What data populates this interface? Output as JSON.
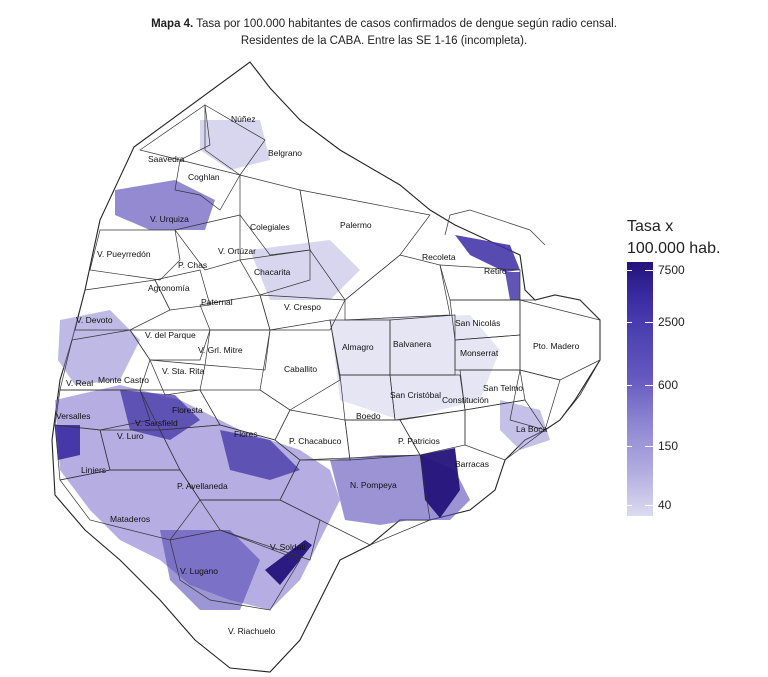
{
  "title": {
    "bold": "Mapa 4.",
    "line1": " Tasa por 100.000 habitantes de casos confirmados de dengue según radio censal.",
    "line2": "Residentes de la CABA. Entre las SE 1-16 (incompleta)."
  },
  "legend": {
    "title_line1": "Tasa x",
    "title_line2": "100.000 hab.",
    "ticks": [
      "7500",
      "2500",
      "600",
      "150",
      "40"
    ],
    "color_high": "#24137a",
    "color_low": "#dcdaf0"
  },
  "neighborhoods": {
    "nunez": "Núñez",
    "saavedra": "Saavedra",
    "belgrano": "Belgrano",
    "coghlan": "Coghlan",
    "v_urquiza": "V. Urquiza",
    "colegiales": "Colegiales",
    "palermo": "Palermo",
    "v_pueyrredon": "V. Pueyrredón",
    "v_ortuzar": "V. Ortúzar",
    "p_chas": "P. Chas",
    "recoleta": "Recoleta",
    "retiro": "Retiro",
    "chacarita": "Chacarita",
    "agronomia": "Agronomía",
    "paternal": "Paternal",
    "v_crespo": "V. Crespo",
    "v_devoto": "V. Devoto",
    "v_del_parque": "V. del Parque",
    "san_nicolas": "San Nicolás",
    "pto_madero": "Pto. Madero",
    "almagro": "Almagro",
    "balvanera": "Balvanera",
    "monserrat": "Monserrat",
    "v_gral_mitre": "V. Grl. Mitre",
    "v_sta_rita": "V. Sta. Rita",
    "caballito": "Caballito",
    "v_real": "V. Real",
    "monte_castro": "Monte Castro",
    "san_cristobal": "San Cristóbal",
    "constitucion": "Constitución",
    "san_telmo": "San Telmo",
    "versalles": "Versalles",
    "floresta": "Floresta",
    "v_sarsfield": "V. Sarsfield",
    "boedo": "Boedo",
    "la_boca": "La Boca",
    "v_luro": "V. Luro",
    "flores": "Flores",
    "p_chacabuco": "P. Chacabuco",
    "p_patricios": "P. Patricios",
    "liniers": "Liniers",
    "barracas": "Barracas",
    "p_avellaneda": "P. Avellaneda",
    "n_pompeya": "N. Pompeya",
    "mataderos": "Mataderos",
    "v_soldati": "V. Soldati",
    "v_lugano": "V. Lugano",
    "v_riachuelo": "V. Riachuelo"
  }
}
